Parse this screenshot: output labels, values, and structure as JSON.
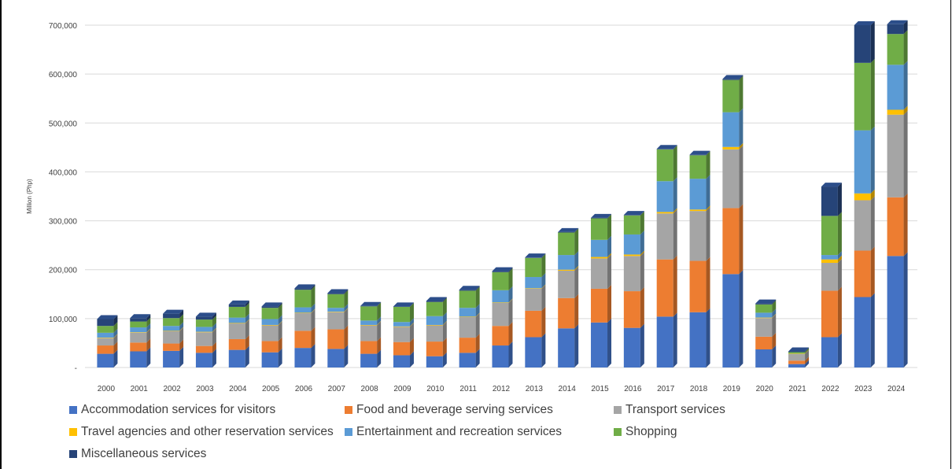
{
  "chart_data": {
    "type": "bar",
    "stacked": true,
    "three_d": true,
    "title": "",
    "xlabel": "",
    "ylabel": "Million (Php)",
    "ylim": [
      0,
      700000
    ],
    "yticks": [
      "-",
      "100,000",
      "200,000",
      "300,000",
      "400,000",
      "500,000",
      "600,000",
      "700,000"
    ],
    "grid": true,
    "legend_position": "bottom",
    "categories": [
      "2000",
      "2001",
      "2002",
      "2003",
      "2004",
      "2005",
      "2006",
      "2007",
      "2008",
      "2009",
      "2010",
      "2011",
      "2012",
      "2013",
      "2014",
      "2015",
      "2016",
      "2017",
      "2018",
      "2019",
      "2020",
      "2021",
      "2022",
      "2023",
      "2024"
    ],
    "series": [
      {
        "name": "Accommodation services for visitors",
        "color": "#4472C4",
        "values": [
          28000,
          33000,
          34000,
          30000,
          36000,
          31000,
          40000,
          38000,
          28000,
          25000,
          23000,
          30000,
          45000,
          62000,
          80000,
          92000,
          81000,
          104000,
          113000,
          191000,
          37000,
          7000,
          62000,
          144000,
          228000
        ]
      },
      {
        "name": "Food and beverage serving services",
        "color": "#ED7D31",
        "values": [
          17000,
          18000,
          15000,
          14000,
          22000,
          23000,
          35000,
          40000,
          26000,
          27000,
          30000,
          31000,
          40000,
          54000,
          62000,
          69000,
          75000,
          117000,
          105000,
          135000,
          26000,
          7000,
          95000,
          95000,
          120000
        ]
      },
      {
        "name": "Transport services",
        "color": "#A5A5A5",
        "values": [
          15000,
          20000,
          25000,
          28000,
          32000,
          32000,
          36000,
          35000,
          32000,
          31000,
          33000,
          42000,
          47000,
          45000,
          56000,
          62000,
          72000,
          94000,
          102000,
          120000,
          38000,
          14000,
          57000,
          103000,
          169000
        ]
      },
      {
        "name": "Travel agencies and other reservation services",
        "color": "#FFC000",
        "values": [
          1000,
          1000,
          1000,
          1000,
          1000,
          1000,
          1000,
          1000,
          1000,
          1000,
          1000,
          1000,
          1000,
          1000,
          2000,
          3000,
          3000,
          3000,
          3000,
          5000,
          1000,
          500,
          7000,
          14000,
          10000
        ]
      },
      {
        "name": "Entertainment and recreation services",
        "color": "#5B9BD5",
        "values": [
          10000,
          10000,
          10000,
          10000,
          11000,
          12000,
          11000,
          8000,
          9000,
          9000,
          18000,
          18000,
          25000,
          23000,
          30000,
          35000,
          41000,
          63000,
          63000,
          71000,
          10000,
          0,
          9000,
          129000,
          92000
        ]
      },
      {
        "name": "Shopping",
        "color": "#70AD47",
        "values": [
          14000,
          12000,
          16000,
          15000,
          22000,
          23000,
          36000,
          28000,
          29000,
          31000,
          29000,
          35000,
          37000,
          39000,
          46000,
          44000,
          39000,
          65000,
          48000,
          66000,
          17000,
          3000,
          80000,
          138000,
          63000
        ]
      },
      {
        "name": "Miscellaneous services",
        "color": "#264478",
        "values": [
          14000,
          7000,
          9000,
          6000,
          5000,
          3000,
          3000,
          2000,
          1000,
          1000,
          2000,
          2000,
          2000,
          1000,
          1000,
          1000,
          1000,
          1000,
          1000,
          2000,
          2000,
          1500,
          60000,
          77000,
          20000
        ]
      }
    ]
  }
}
